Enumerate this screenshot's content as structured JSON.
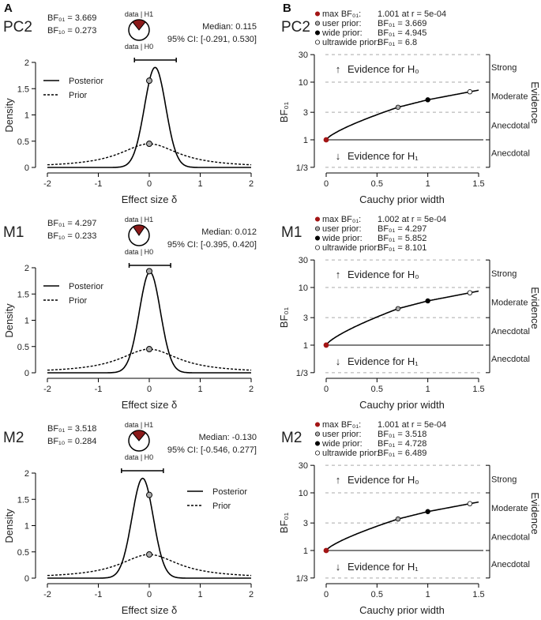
{
  "panel_labels": {
    "a": "A",
    "b": "B"
  },
  "colors": {
    "max": "#a31515",
    "user": "#aaaaaa",
    "wide": "#000000",
    "ultrawide": "#ffffff",
    "pie": "#8b1a1a",
    "grid": "#aaaaaa"
  },
  "chart_data": [
    {
      "type": "line",
      "row_label": "PC2",
      "posterior_plot": {
        "bf01_text": "BF₀₁ = 3.669",
        "bf10_text": "BF₁₀ = 0.273",
        "pie_top": "data | H1",
        "pie_bottom": "data | H0",
        "median_text": "Median: 0.115",
        "ci_text": "95% CI: [-0.291, 0.530]",
        "median": 0.115,
        "ci": [
          -0.291,
          0.53
        ],
        "bf01": 3.669,
        "prior_scale": 0.707,
        "xlabel": "Effect size δ",
        "ylabel": "Density",
        "xticks": [
          "-2",
          "-1",
          "0",
          "1",
          "2"
        ],
        "yticks": [
          "0",
          "0.5",
          "1",
          "1.5",
          "2"
        ],
        "xlim": [
          -2,
          2
        ],
        "ylim": [
          0,
          2
        ],
        "legend": [
          "Posterior",
          "Prior"
        ],
        "legend_position": "top-left"
      },
      "robustness_plot": {
        "legend": [
          {
            "label": "max BF₀₁:",
            "value": "1.001 at r = 5e-04"
          },
          {
            "label": "user prior:",
            "value": "BF₀₁ = 3.669"
          },
          {
            "label": "wide prior:",
            "value": "BF₀₁ = 4.945"
          },
          {
            "label": "ultrawide prior:",
            "value": "BF₀₁ = 6.8"
          }
        ],
        "points_r": [
          0.0005,
          0.707,
          1,
          1.414
        ],
        "points_bf": [
          1.001,
          3.669,
          4.945,
          6.8
        ],
        "xlabel": "Cauchy prior width",
        "ylabel": "BF₀₁",
        "xticks": [
          "0",
          "0.5",
          "1",
          "1.5"
        ],
        "yticks": [
          "1/3",
          "1",
          "3",
          "10",
          "30"
        ],
        "xlim": [
          0,
          1.5
        ],
        "ylim": [
          0.3333,
          30
        ],
        "yscale": "log",
        "evidence_labels": [
          "Strong",
          "Moderate",
          "Anecdotal",
          "Anecdotal"
        ],
        "evidence_title": "Evidence",
        "h0_text": "Evidence for H₀",
        "h1_text": "Evidence for H₁"
      }
    },
    {
      "type": "line",
      "row_label": "M1",
      "posterior_plot": {
        "bf01_text": "BF₀₁ = 4.297",
        "bf10_text": "BF₁₀ = 0.233",
        "pie_top": "data | H1",
        "pie_bottom": "data | H0",
        "median_text": "Median: 0.012",
        "ci_text": "95% CI: [-0.395, 0.420]",
        "median": 0.012,
        "ci": [
          -0.395,
          0.42
        ],
        "bf01": 4.297,
        "prior_scale": 0.707,
        "xlabel": "Effect size δ",
        "ylabel": "Density",
        "xticks": [
          "-2",
          "-1",
          "0",
          "1",
          "2"
        ],
        "yticks": [
          "0",
          "0.5",
          "1",
          "1.5",
          "2"
        ],
        "xlim": [
          -2,
          2
        ],
        "ylim": [
          0,
          2
        ],
        "legend": [
          "Posterior",
          "Prior"
        ],
        "legend_position": "top-left"
      },
      "robustness_plot": {
        "legend": [
          {
            "label": "max BF₀₁:",
            "value": "1.002 at r = 5e-04"
          },
          {
            "label": "user prior:",
            "value": "BF₀₁ = 4.297"
          },
          {
            "label": "wide prior:",
            "value": "BF₀₁ = 5.852"
          },
          {
            "label": "ultrawide prior:",
            "value": "BF₀₁ = 8.101"
          }
        ],
        "points_r": [
          0.0005,
          0.707,
          1,
          1.414
        ],
        "points_bf": [
          1.002,
          4.297,
          5.852,
          8.101
        ],
        "xlabel": "Cauchy prior width",
        "ylabel": "BF₀₁",
        "xticks": [
          "0",
          "0.5",
          "1",
          "1.5"
        ],
        "yticks": [
          "1/3",
          "1",
          "3",
          "10",
          "30"
        ],
        "xlim": [
          0,
          1.5
        ],
        "ylim": [
          0.3333,
          30
        ],
        "yscale": "log",
        "evidence_labels": [
          "Strong",
          "Moderate",
          "Anecdotal",
          "Anecdotal"
        ],
        "evidence_title": "Evidence",
        "h0_text": "Evidence for H₀",
        "h1_text": "Evidence for H₁"
      }
    },
    {
      "type": "line",
      "row_label": "M2",
      "posterior_plot": {
        "bf01_text": "BF₀₁ = 3.518",
        "bf10_text": "BF₁₀ = 0.284",
        "pie_top": "data | H1",
        "pie_bottom": "data | H0",
        "median_text": "Median: -0.130",
        "ci_text": "95% CI: [-0.546, 0.277]",
        "median": -0.13,
        "ci": [
          -0.546,
          0.277
        ],
        "bf01": 3.518,
        "prior_scale": 0.707,
        "xlabel": "Effect size δ",
        "ylabel": "Density",
        "xticks": [
          "-2",
          "-1",
          "0",
          "1",
          "2"
        ],
        "yticks": [
          "0",
          "0.5",
          "1",
          "1.5",
          "2"
        ],
        "xlim": [
          -2,
          2
        ],
        "ylim": [
          0,
          2
        ],
        "legend": [
          "Posterior",
          "Prior"
        ],
        "legend_position": "top-right"
      },
      "robustness_plot": {
        "legend": [
          {
            "label": "max BF₀₁:",
            "value": "1.001 at r = 5e-04"
          },
          {
            "label": "user prior:",
            "value": "BF₀₁ = 3.518"
          },
          {
            "label": "wide prior:",
            "value": "BF₀₁ = 4.728"
          },
          {
            "label": "ultrawide prior:",
            "value": "BF₀₁ = 6.489"
          }
        ],
        "points_r": [
          0.0005,
          0.707,
          1,
          1.414
        ],
        "points_bf": [
          1.001,
          3.518,
          4.728,
          6.489
        ],
        "xlabel": "Cauchy prior width",
        "ylabel": "BF₀₁",
        "xticks": [
          "0",
          "0.5",
          "1",
          "1.5"
        ],
        "yticks": [
          "1/3",
          "1",
          "3",
          "10",
          "30"
        ],
        "xlim": [
          0,
          1.5
        ],
        "ylim": [
          0.3333,
          30
        ],
        "yscale": "log",
        "evidence_labels": [
          "Strong",
          "Moderate",
          "Anecdotal",
          "Anecdotal"
        ],
        "evidence_title": "Evidence",
        "h0_text": "Evidence for H₀",
        "h1_text": "Evidence for H₁"
      }
    }
  ]
}
